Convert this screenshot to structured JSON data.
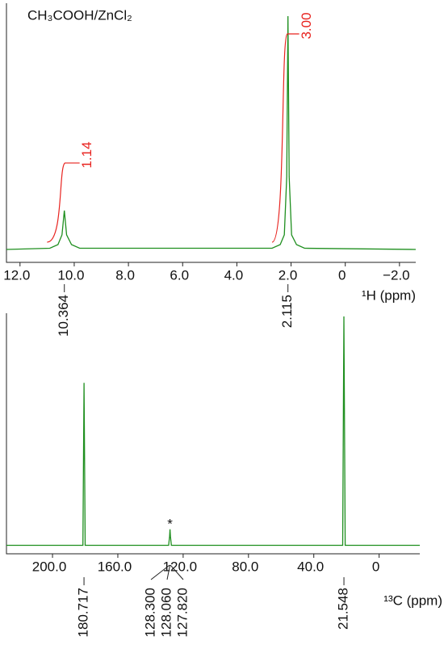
{
  "chart_data": [
    {
      "type": "line",
      "title": "CH₃COOH/ZnCl₂",
      "x_label": "¹H (ppm)",
      "xlim": [
        12.5,
        -2.6
      ],
      "ylim": [
        -3,
        100
      ],
      "xticks": [
        {
          "value": 12,
          "label": "12.0"
        },
        {
          "value": 10,
          "label": "10.0"
        },
        {
          "value": 8,
          "label": "8.0"
        },
        {
          "value": 6,
          "label": "6.0"
        },
        {
          "value": 4,
          "label": "4.0"
        },
        {
          "value": 2,
          "label": "2.0"
        },
        0,
        {
          "value": -2,
          "label": "−2.0"
        }
      ],
      "series": [
        {
          "color": "#1f8f1f",
          "x": [
            12.5,
            10.9,
            10.6,
            10.45,
            10.364,
            10.28,
            10.1,
            9.8,
            2.7,
            2.4,
            2.25,
            2.16,
            2.115,
            2.07,
            1.98,
            1.8,
            1.5,
            -2.6
          ],
          "values": [
            0,
            0.5,
            2,
            6,
            16,
            6,
            2,
            0.5,
            0.5,
            2,
            6,
            30,
            96,
            30,
            6,
            2,
            0.5,
            0
          ]
        }
      ],
      "integrals": {
        "color": "#e8231f",
        "values": [
          1.14,
          3.0
        ],
        "value_labels": [
          "1.14",
          "3.00"
        ],
        "x_from": [
          11.0,
          2.7
        ],
        "x_to": [
          9.8,
          1.7
        ]
      },
      "peak_labels": {
        "values": [
          10.364,
          2.115
        ],
        "value_labels": [
          "10.364",
          "2.115"
        ]
      }
    },
    {
      "type": "line",
      "x_label": "¹³C (ppm)",
      "xlim": [
        228.2,
        -24.9
      ],
      "ylim": [
        -3,
        100
      ],
      "xticks": [
        {
          "value": 200,
          "label": "200.0"
        },
        {
          "value": 160,
          "label": "160.0"
        },
        {
          "value": 120,
          "label": "120.0"
        },
        {
          "value": 80,
          "label": "80.0"
        },
        {
          "value": 40,
          "label": "40.0"
        },
        0
      ],
      "series": [
        {
          "color": "#1f8f1f",
          "x": [
            228.2,
            181.4,
            180.717,
            180.0,
            128.9,
            128.3,
            128.06,
            127.82,
            127.2,
            22.3,
            21.548,
            20.8,
            -24.9
          ],
          "values": [
            0,
            0,
            71,
            0,
            0,
            4,
            7,
            4,
            0,
            0,
            100,
            0,
            0
          ]
        }
      ],
      "annotations": [
        {
          "text": "*",
          "x": 128.06
        }
      ],
      "peak_labels": {
        "values": [
          180.717,
          128.3,
          128.06,
          127.82,
          21.548
        ],
        "value_labels": [
          "180.717",
          "128.300",
          "128.060",
          "127.820",
          "21.548"
        ]
      }
    }
  ]
}
